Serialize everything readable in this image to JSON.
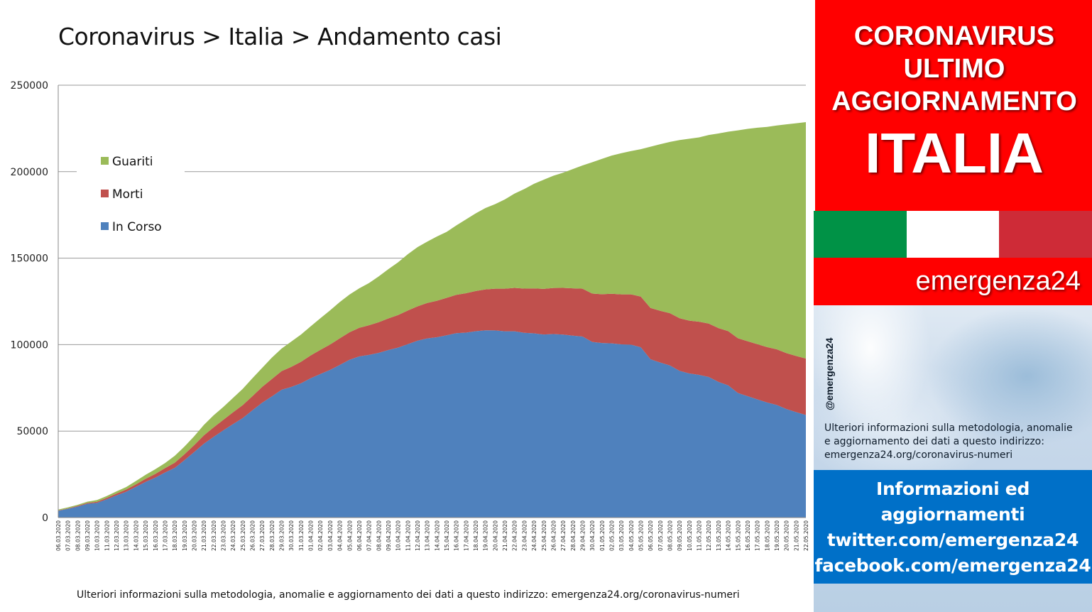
{
  "chart_data": {
    "type": "area",
    "title": "Coronavirus > Italia > Andamento casi",
    "stacked": true,
    "ylim": [
      0,
      250000
    ],
    "y_ticks": [
      0,
      50000,
      100000,
      150000,
      200000,
      250000
    ],
    "y_tick_labels": [
      "0",
      "50000",
      "100000",
      "150000",
      "200000",
      "250000"
    ],
    "grid": "horizontal",
    "legend_position": "top-left",
    "x": [
      "06.03.2020",
      "07.03.2020",
      "08.03.2020",
      "09.03.2020",
      "10.03.2020",
      "11.03.2020",
      "12.03.2020",
      "13.03.2020",
      "14.03.2020",
      "15.03.2020",
      "16.03.2020",
      "17.03.2020",
      "18.03.2020",
      "19.03.2020",
      "20.03.2020",
      "21.03.2020",
      "22.03.2020",
      "23.03.2020",
      "24.03.2020",
      "25.03.2020",
      "26.03.2020",
      "27.03.2020",
      "28.03.2020",
      "29.03.2020",
      "30.03.2020",
      "31.03.2020",
      "01.04.2020",
      "02.04.2020",
      "03.04.2020",
      "04.04.2020",
      "05.04.2020",
      "06.04.2020",
      "07.04.2020",
      "08.04.2020",
      "09.04.2020",
      "10.04.2020",
      "11.04.2020",
      "12.04.2020",
      "13.04.2020",
      "14.04.2020",
      "15.04.2020",
      "16.04.2020",
      "17.04.2020",
      "18.04.2020",
      "19.04.2020",
      "20.04.2020",
      "21.04.2020",
      "22.04.2020",
      "23.04.2020",
      "24.04.2020",
      "25.04.2020",
      "26.04.2020",
      "27.04.2020",
      "28.04.2020",
      "29.04.2020",
      "30.04.2020",
      "01.05.2020",
      "02.05.2020",
      "03.05.2020",
      "04.05.2020",
      "05.05.2020",
      "06.05.2020",
      "07.05.2020",
      "08.05.2020",
      "09.05.2020",
      "10.05.2020",
      "11.05.2020",
      "12.05.2020",
      "13.05.2020",
      "14.05.2020",
      "15.05.2020",
      "16.05.2020",
      "17.05.2020",
      "18.05.2020",
      "19.05.2020",
      "20.05.2020",
      "21.05.2020",
      "22.05.2020"
    ],
    "series": [
      {
        "name": "In Corso",
        "color": "#4f81bd",
        "values": [
          3916,
          5061,
          6387,
          7985,
          8514,
          10590,
          12839,
          14955,
          17750,
          20603,
          23073,
          26062,
          28710,
          33190,
          37860,
          42681,
          46638,
          50418,
          54030,
          57521,
          62013,
          66414,
          70065,
          73880,
          75528,
          77635,
          80572,
          83049,
          85388,
          88274,
          91246,
          93187,
          94067,
          95262,
          96877,
          98273,
          100269,
          102253,
          103616,
          104291,
          105418,
          106607,
          106962,
          107771,
          108257,
          108237,
          107709,
          107699,
          106848,
          106527,
          105847,
          106103,
          105813,
          105205,
          104657,
          101551,
          100943,
          100704,
          100179,
          99980,
          98467,
          91528,
          89624,
          87961,
          84842,
          83324,
          82488,
          81266,
          78457,
          76440,
          72070,
          70187,
          68351,
          66553,
          65129,
          62752,
          60960,
          59322
        ]
      },
      {
        "name": "Morti",
        "color": "#c0504d",
        "values": [
          197,
          233,
          366,
          463,
          631,
          827,
          1016,
          1266,
          1441,
          1809,
          2158,
          2503,
          2978,
          3405,
          4032,
          4825,
          5476,
          6077,
          6820,
          7503,
          8165,
          9134,
          10023,
          10779,
          11591,
          12428,
          13155,
          13915,
          14681,
          15362,
          15887,
          16523,
          17127,
          17669,
          18279,
          18849,
          19468,
          19899,
          20465,
          21067,
          21645,
          22170,
          22745,
          23227,
          23660,
          24114,
          24648,
          25085,
          25549,
          25969,
          26384,
          26644,
          26977,
          27359,
          27682,
          27967,
          28236,
          28710,
          28884,
          29079,
          29315,
          29684,
          29958,
          30201,
          30395,
          30560,
          30739,
          30911,
          31106,
          31368,
          31610,
          31763,
          31908,
          32007,
          32169,
          32330,
          32486,
          32616
        ]
      },
      {
        "name": "Guariti",
        "color": "#9bbb59",
        "values": [
          523,
          589,
          622,
          724,
          1004,
          1045,
          1258,
          1439,
          1966,
          2335,
          2749,
          2941,
          4025,
          4440,
          5129,
          6072,
          7024,
          7432,
          8326,
          9362,
          10361,
          10950,
          12384,
          13030,
          14620,
          15729,
          16847,
          18278,
          19758,
          20996,
          21815,
          22837,
          24392,
          26491,
          28470,
          30455,
          32534,
          34211,
          35435,
          37130,
          38092,
          40164,
          42727,
          44927,
          47055,
          48877,
          51600,
          54543,
          57576,
          60498,
          63120,
          64928,
          66624,
          68941,
          71252,
          75945,
          78249,
          79914,
          81654,
          82879,
          85231,
          93245,
          96276,
          99023,
          103031,
          105186,
          106587,
          109039,
          112541,
          115288,
          120205,
          122810,
          125176,
          127326,
          129401,
          132282,
          134560,
          136720
        ]
      }
    ]
  },
  "footer_note": "Ulteriori informazioni sulla metodologia, anomalie e aggiornamento dei dati a questo indirizzo: emergenza24.org/coronavirus-numeri",
  "sidebar": {
    "banner_line1": "CORONAVIRUS",
    "banner_line2": "ULTIMO",
    "banner_line3": "AGGIORNAMENTO",
    "banner_country": "ITALIA",
    "flag_colors": [
      "#009246",
      "#ffffff",
      "#ce2b37"
    ],
    "brand": "emergenza24",
    "handle": "@emergenza24",
    "note_line1": "Ulteriori informazioni sulla metodologia, anomalie",
    "note_line2": "e aggiornamento dei dati a questo indirizzo:",
    "note_line3": "emergenza24.org/coronavirus-numeri",
    "social_line1": "Informazioni ed",
    "social_line2": "aggiornamenti",
    "social_line3": "twitter.com/emergenza24",
    "social_line4": "facebook.com/emergenza24"
  }
}
